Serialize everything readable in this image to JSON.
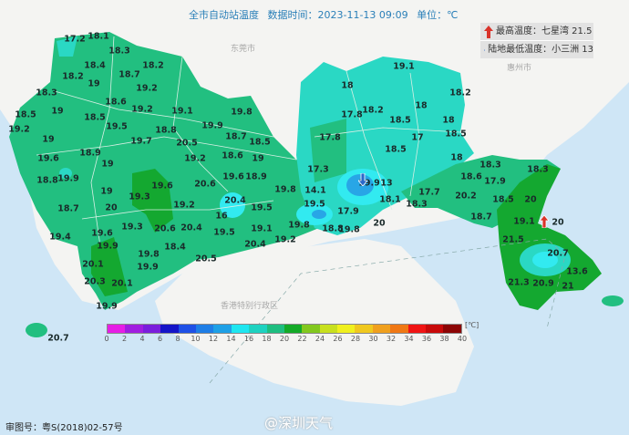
{
  "header": {
    "title": "全市自动站温度",
    "time_label": "数据时间：2023-11-13 09:09",
    "unit_label": "单位：℃"
  },
  "extremes": {
    "max_label": "最高温度：七星湾 21.5",
    "min_label": "陆地最低温度：小三洲 13",
    "max_icon": "up-arrow-icon",
    "min_icon": "down-arrow-icon",
    "max_color": "#d9332a",
    "min_color": "#2a68c8"
  },
  "places": {
    "dongguan": "东莞市",
    "huizhou": "惠州市",
    "hongkong": "香港特别行政区"
  },
  "stations": [
    "17.2",
    "18.1",
    "18.3",
    "18.4",
    "18.2",
    "18.2",
    "19",
    "18.7",
    "19.2",
    "18.3",
    "18.6",
    "19.2",
    "19.1",
    "19.8",
    "18.5",
    "19",
    "18.5",
    "19.2",
    "19.5",
    "18.8",
    "19.9",
    "19",
    "19.7",
    "20.5",
    "18.7",
    "18.5",
    "18.9",
    "19.6",
    "19",
    "19.2",
    "18.6",
    "19",
    "18.8",
    "19.9",
    "19.6",
    "20.6",
    "19.6",
    "18.9",
    "19",
    "19.3",
    "19.8",
    "19.2",
    "20.4",
    "16",
    "18.7",
    "20",
    "19.5",
    "19.3",
    "20.6",
    "20.4",
    "19.5",
    "19.1",
    "19.4",
    "19.6",
    "19.9",
    "20.4",
    "19.2",
    "18.4",
    "19.8",
    "20.1",
    "19.9",
    "20.3",
    "20.1",
    "20.5",
    "19.9",
    "20.7",
    "19.1",
    "18",
    "18.2",
    "18",
    "17.8",
    "18.2",
    "18.5",
    "18",
    "18.5",
    "17",
    "17.8",
    "18.5",
    "18",
    "17.3",
    "18.3",
    "18.6",
    "17.9",
    "18.3",
    "19.9",
    "13",
    "14.1",
    "17.7",
    "18.1",
    "18.5",
    "20",
    "20.2",
    "19.5",
    "18.3",
    "17.9",
    "18.7",
    "19.8",
    "18.8",
    "19.8",
    "20",
    "19.1",
    "20",
    "21.5",
    "20.7",
    "13.6",
    "21.3",
    "20.9",
    "21",
    "20.3"
  ],
  "legend": {
    "unit": "[℃]",
    "ticks": [
      "0",
      "2",
      "4",
      "6",
      "8",
      "10",
      "12",
      "14",
      "16",
      "18",
      "20",
      "22",
      "24",
      "26",
      "28",
      "30",
      "32",
      "34",
      "36",
      "38",
      "40"
    ],
    "colors": [
      "#e61ee6",
      "#a01ee0",
      "#7a1edc",
      "#1414c8",
      "#1e50e6",
      "#1e7ee6",
      "#1ea0e6",
      "#1ee6f0",
      "#1ed2c0",
      "#1ebe80",
      "#14aa28",
      "#82c81e",
      "#c8e01e",
      "#f0f01e",
      "#f0c81e",
      "#f0a01e",
      "#f07814",
      "#f01414",
      "#c80a0a",
      "#8c0505"
    ]
  },
  "map_colors": {
    "sea": "#cfe6f6",
    "land": "#f4f4f2",
    "temp_18_20": "#22bf80",
    "temp_20_22": "#14a830",
    "temp_16_18": "#2ad8c4",
    "temp_14_16": "#32eaf0",
    "temp_12_14": "#28a6e6"
  },
  "footer": {
    "map_approval": "审图号：粤S(2018)02-57号",
    "watermark": "@深圳天气"
  }
}
